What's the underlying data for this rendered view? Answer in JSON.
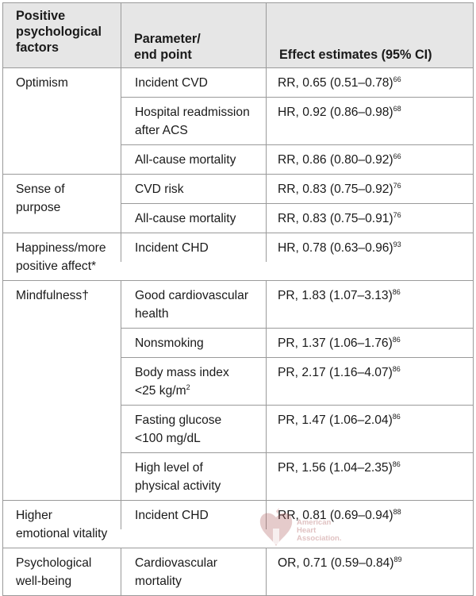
{
  "header": {
    "col1": [
      "Positive",
      "psychological",
      "factors"
    ],
    "col2": [
      "Parameter/",
      "end point"
    ],
    "col3": "Effect estimates (95% CI)"
  },
  "groups": [
    {
      "factor": [
        "Optimism"
      ],
      "rows": [
        {
          "param": [
            "Incident CVD"
          ],
          "effect": "RR, 0.65 (0.51–0.78)",
          "ref": "66"
        },
        {
          "param": [
            "Hospital readmission",
            "after ACS"
          ],
          "effect": "HR, 0.92 (0.86–0.98)",
          "ref": "68"
        },
        {
          "param": [
            "All-cause mortality"
          ],
          "effect": "RR, 0.86 (0.80–0.92)",
          "ref": "66"
        }
      ]
    },
    {
      "factor": [
        "Sense of",
        "purpose"
      ],
      "rows": [
        {
          "param": [
            "CVD risk"
          ],
          "effect": "RR, 0.83 (0.75–0.92)",
          "ref": "76"
        },
        {
          "param": [
            "All-cause mortality"
          ],
          "effect": "RR, 0.83 (0.75–0.91)",
          "ref": "76"
        }
      ]
    },
    {
      "factor": [
        "Happiness/more",
        "positive affect*"
      ],
      "rows": [
        {
          "param": [
            "Incident CHD"
          ],
          "effect": "HR, 0.78 (0.63–0.96)",
          "ref": "93"
        }
      ]
    },
    {
      "factor": [
        "Mindfulness†"
      ],
      "rows": [
        {
          "param": [
            "Good cardiovascular",
            "health"
          ],
          "effect": "PR, 1.83 (1.07–3.13)",
          "ref": "86"
        },
        {
          "param": [
            "Nonsmoking"
          ],
          "effect": "PR, 1.37 (1.06–1.76)",
          "ref": "86"
        },
        {
          "param": [
            "Body mass index",
            "<25 kg/m"
          ],
          "param_sup": "2",
          "effect": "PR, 2.17 (1.16–4.07)",
          "ref": "86"
        },
        {
          "param": [
            "Fasting glucose",
            "<100 mg/dL"
          ],
          "effect": "PR, 1.47 (1.06–2.04)",
          "ref": "86"
        },
        {
          "param": [
            "High level of",
            "physical activity"
          ],
          "effect": "PR, 1.56 (1.04–2.35)",
          "ref": "86"
        }
      ]
    },
    {
      "factor": [
        "Higher",
        "emotional vitality"
      ],
      "rows": [
        {
          "param": [
            "Incident CHD"
          ],
          "effect": "RR, 0.81 (0.69–0.94)",
          "ref": "88"
        }
      ]
    },
    {
      "factor": [
        "Psychological",
        "well-being"
      ],
      "rows": [
        {
          "param": [
            "Cardiovascular",
            "mortality"
          ],
          "effect": "OR, 0.71 (0.59–0.84)",
          "ref": "89"
        }
      ]
    }
  ],
  "watermark": {
    "lines": [
      "American",
      "Heart",
      "Association."
    ],
    "color": "#a04040"
  }
}
